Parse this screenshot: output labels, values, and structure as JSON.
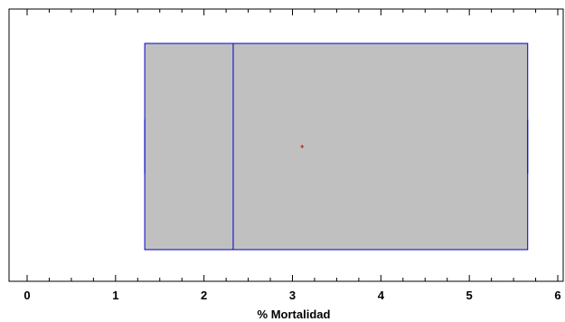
{
  "chart_data": {
    "type": "boxplot",
    "orientation": "horizontal",
    "xlabel": "% Mortalidad",
    "xlim": [
      -0.2,
      6.15
    ],
    "x_ticks": [
      0,
      1,
      2,
      3,
      4,
      5,
      6
    ],
    "x_tick_labels": [
      "0",
      "1",
      "2",
      "3",
      "4",
      "5",
      "6"
    ],
    "minor_tick_step": 0.25,
    "grid": false,
    "legend": "none",
    "box": {
      "min": 1.33,
      "q1": 1.33,
      "median": 2.33,
      "mean": 3.11,
      "q3": 5.66,
      "max": 5.66
    },
    "colors": {
      "box_fill": "#c0c0c0",
      "box_stroke": "#0000cc",
      "mean_marker": "#b22222",
      "frame": "#000000"
    }
  }
}
